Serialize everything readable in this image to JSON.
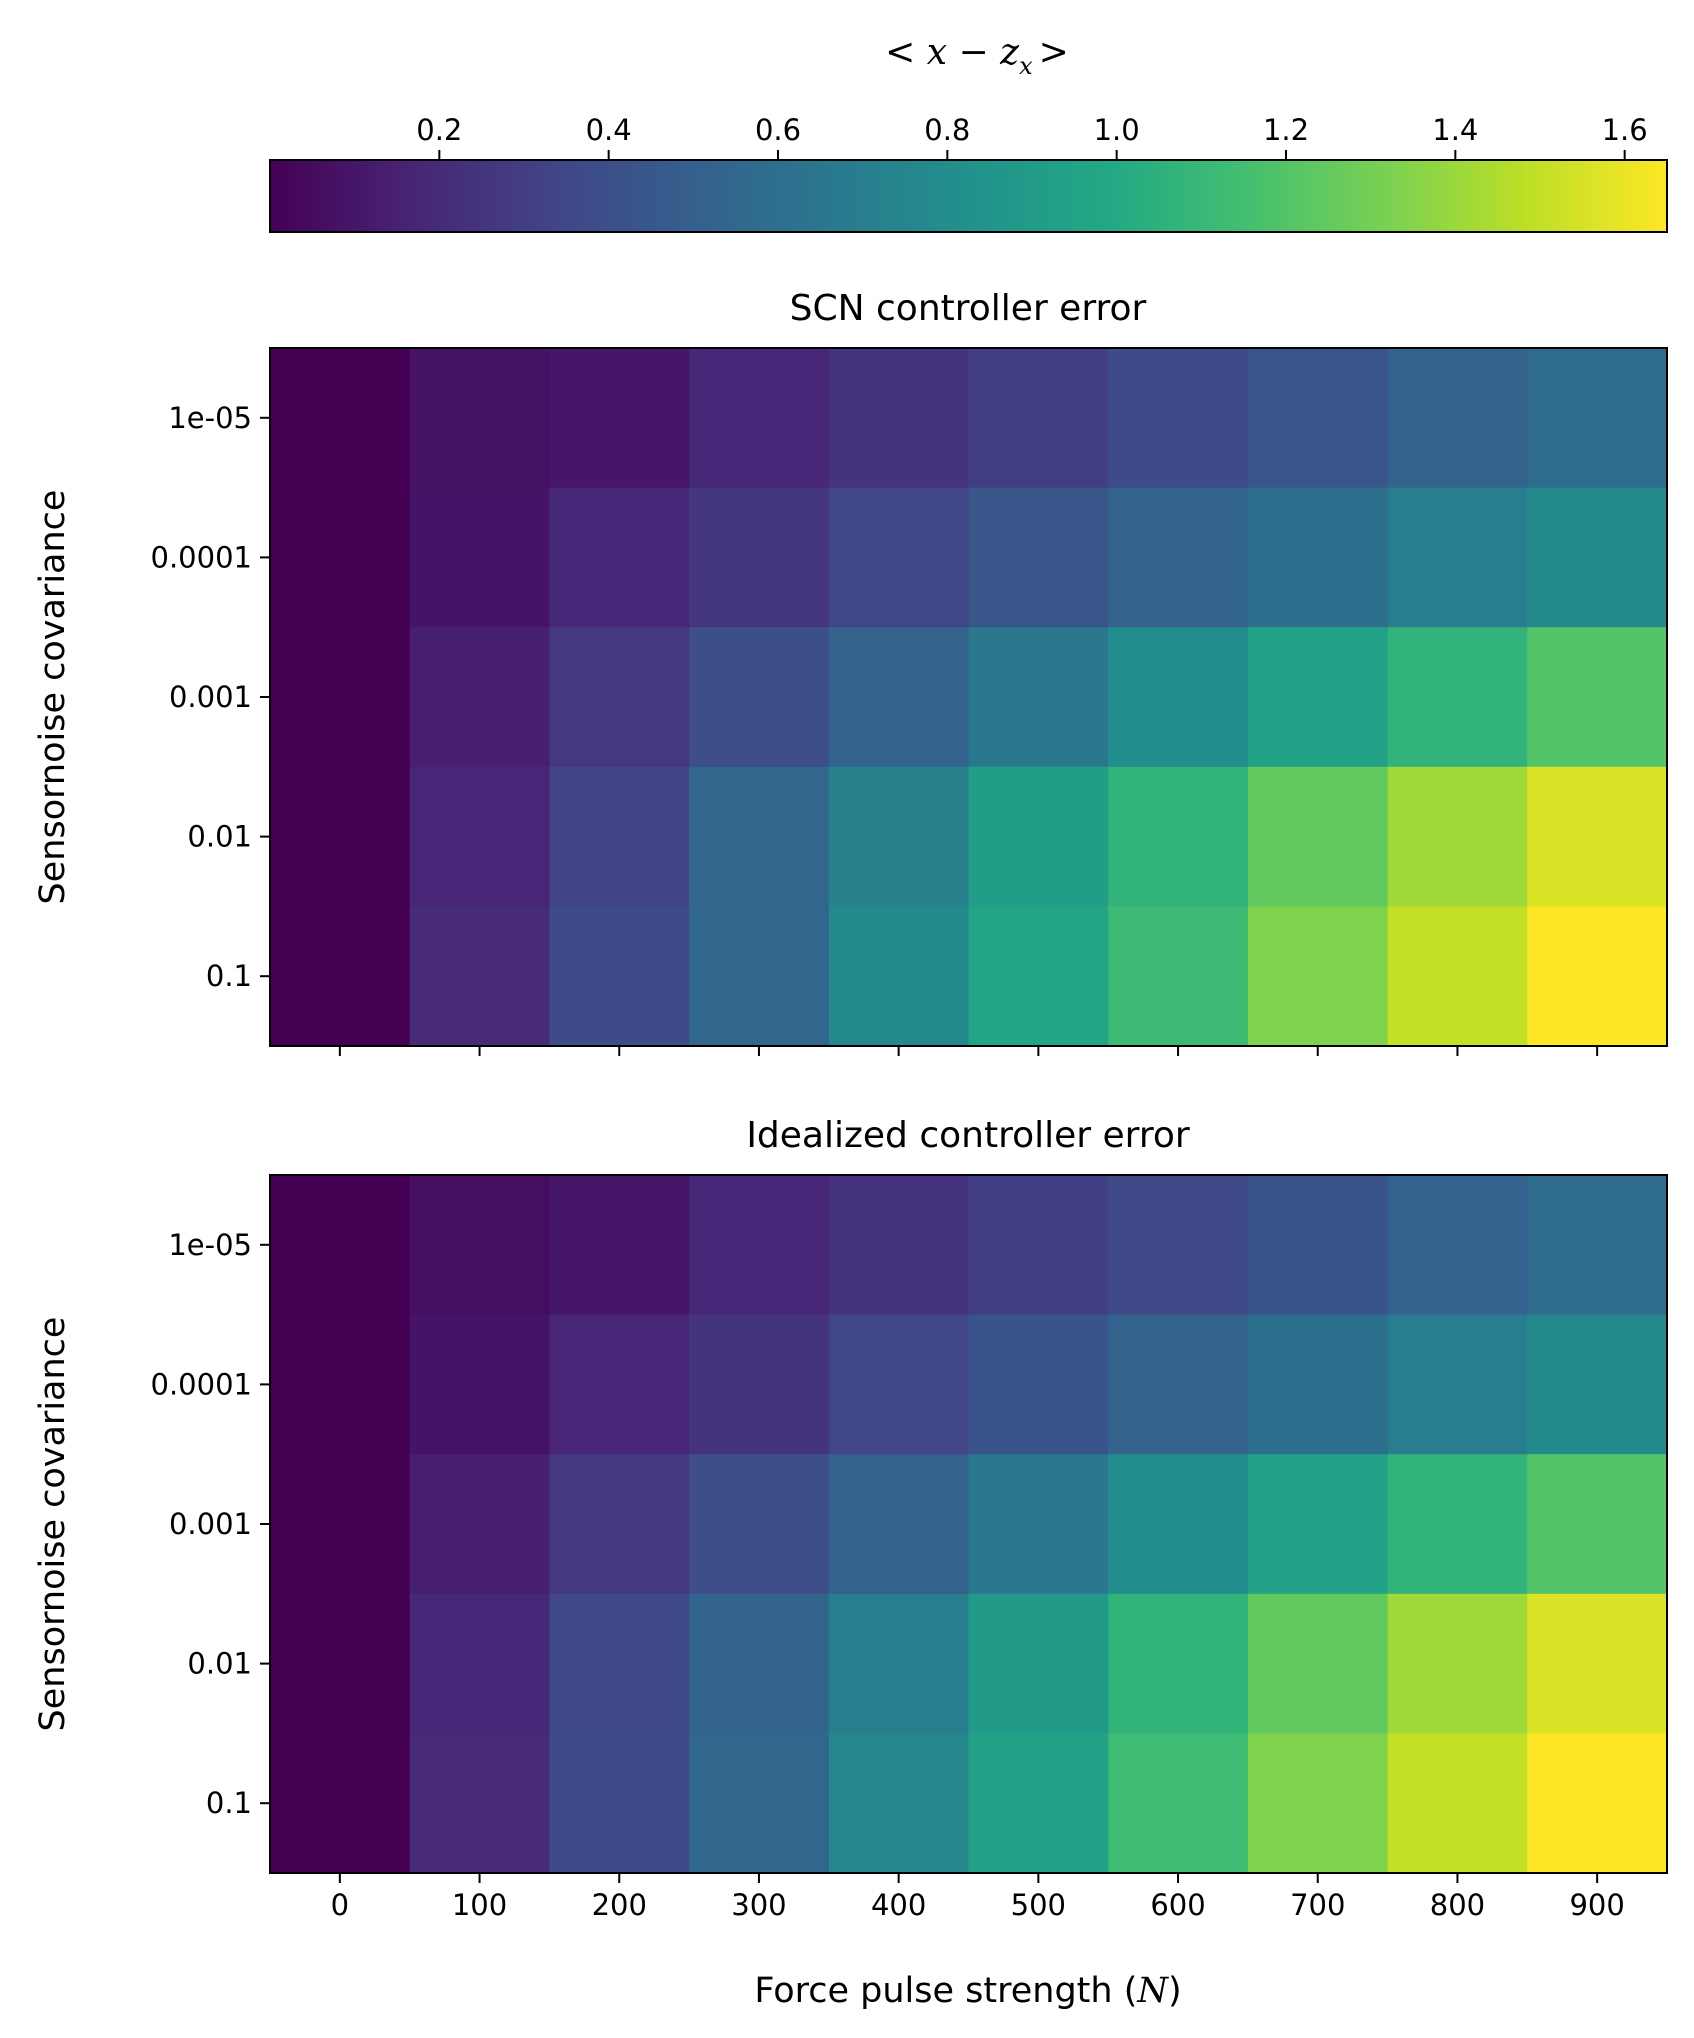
{
  "colorbar": {
    "label": "< x − z",
    "label_sub": "x",
    "label_end": ">",
    "ticks": [
      0.2,
      0.4,
      0.6,
      0.8,
      1.0,
      1.2,
      1.4,
      1.6
    ],
    "tick_labels": [
      "0.2",
      "0.4",
      "0.6",
      "0.8",
      "1.0",
      "1.2",
      "1.4",
      "1.6"
    ],
    "vmin": 0.0,
    "vmax": 1.65,
    "colormap": "viridis"
  },
  "chart_data": [
    {
      "type": "heatmap",
      "title": "SCN controller error",
      "ylabel": "Sensornoise covariance",
      "xlabel": "",
      "x": [
        0,
        100,
        200,
        300,
        400,
        500,
        600,
        700,
        800,
        900
      ],
      "y": [
        "1e-05",
        "0.0001",
        "0.001",
        "0.01",
        "0.1"
      ],
      "values": [
        [
          0.0,
          0.08,
          0.1,
          0.18,
          0.24,
          0.3,
          0.37,
          0.44,
          0.52,
          0.58
        ],
        [
          0.0,
          0.09,
          0.18,
          0.26,
          0.34,
          0.44,
          0.53,
          0.61,
          0.69,
          0.77
        ],
        [
          0.0,
          0.14,
          0.27,
          0.39,
          0.52,
          0.66,
          0.79,
          0.94,
          1.07,
          1.2
        ],
        [
          0.0,
          0.17,
          0.33,
          0.54,
          0.72,
          0.91,
          1.07,
          1.25,
          1.41,
          1.56
        ],
        [
          0.0,
          0.2,
          0.37,
          0.55,
          0.77,
          0.96,
          1.12,
          1.33,
          1.5,
          1.65
        ]
      ]
    },
    {
      "type": "heatmap",
      "title": "Idealized controller error",
      "ylabel": "Sensornoise covariance",
      "xlabel": "Force pulse strength (N)",
      "x": [
        0,
        100,
        200,
        300,
        400,
        500,
        600,
        700,
        800,
        900
      ],
      "y": [
        "1e-05",
        "0.0001",
        "0.001",
        "0.01",
        "0.1"
      ],
      "values": [
        [
          0.0,
          0.06,
          0.1,
          0.18,
          0.24,
          0.3,
          0.36,
          0.43,
          0.51,
          0.58
        ],
        [
          0.0,
          0.09,
          0.17,
          0.25,
          0.34,
          0.43,
          0.52,
          0.61,
          0.69,
          0.77
        ],
        [
          0.0,
          0.14,
          0.27,
          0.39,
          0.52,
          0.66,
          0.79,
          0.94,
          1.07,
          1.2
        ],
        [
          0.0,
          0.18,
          0.36,
          0.53,
          0.7,
          0.89,
          1.07,
          1.25,
          1.41,
          1.56
        ],
        [
          0.0,
          0.2,
          0.37,
          0.55,
          0.75,
          0.94,
          1.13,
          1.33,
          1.5,
          1.65
        ]
      ]
    }
  ],
  "xaxis": {
    "label": "Force pulse strength (",
    "label_var": "N",
    "label_end": ")",
    "tick_labels": [
      "0",
      "100",
      "200",
      "300",
      "400",
      "500",
      "600",
      "700",
      "800",
      "900"
    ]
  }
}
